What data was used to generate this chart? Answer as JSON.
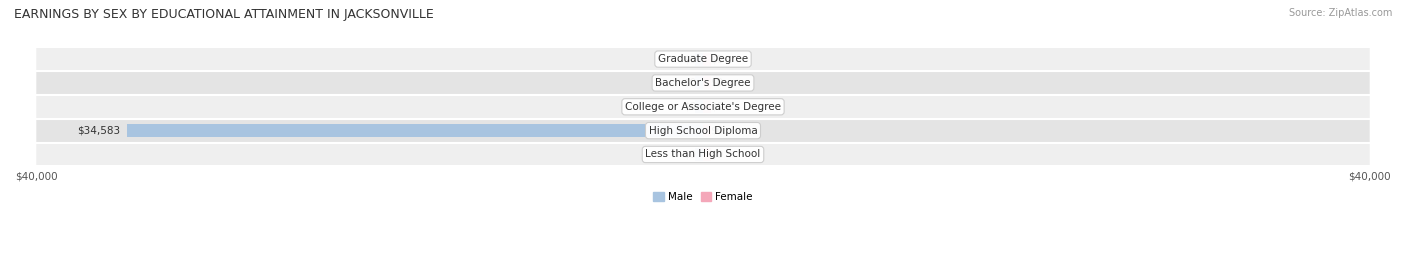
{
  "title": "EARNINGS BY SEX BY EDUCATIONAL ATTAINMENT IN JACKSONVILLE",
  "source": "Source: ZipAtlas.com",
  "categories": [
    "Less than High School",
    "High School Diploma",
    "College or Associate's Degree",
    "Bachelor's Degree",
    "Graduate Degree"
  ],
  "male_values": [
    0,
    34583,
    0,
    0,
    0
  ],
  "female_values": [
    0,
    0,
    0,
    0,
    0
  ],
  "x_min": -40000,
  "x_max": 40000,
  "x_ticks": [
    -40000,
    40000
  ],
  "x_tick_labels": [
    "$40,000",
    "$40,000"
  ],
  "male_color": "#a8c4e0",
  "female_color": "#f4a7b9",
  "male_legend": "Male",
  "female_legend": "Female",
  "bar_height": 0.55,
  "row_bg_colors": [
    "#f0f0f0",
    "#e8e8e8"
  ],
  "title_fontsize": 9,
  "label_fontsize": 7.5,
  "tick_fontsize": 7.5,
  "source_fontsize": 7
}
